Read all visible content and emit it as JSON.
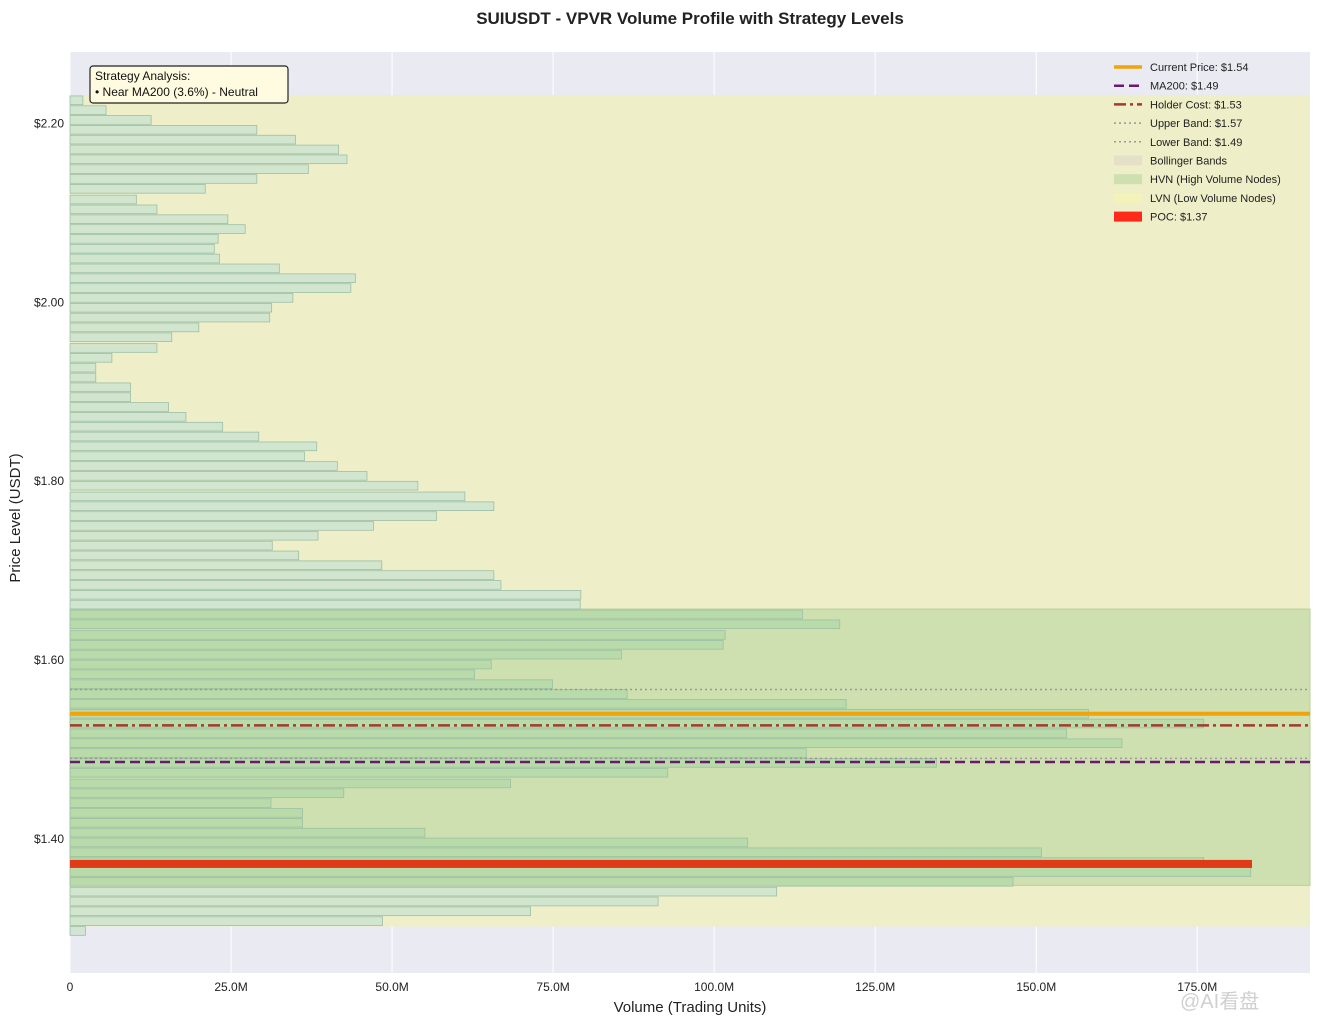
{
  "chart_data": {
    "type": "bar",
    "orientation": "horizontal",
    "title": "SUIUSDT - VPVR Volume Profile with Strategy Levels",
    "xlabel": "Volume (Trading Units)",
    "ylabel": "Price Level (USDT)",
    "xlim": [
      0,
      192500000
    ],
    "ylim": [
      1.25,
      2.28
    ],
    "x_ticks": [
      0,
      25000000,
      50000000,
      75000000,
      100000000,
      125000000,
      150000000,
      175000000
    ],
    "x_tick_labels": [
      "0",
      "25.0M",
      "50.0M",
      "75.0M",
      "100.0M",
      "125.0M",
      "150.0M",
      "175.0M"
    ],
    "y_ticks": [
      1.4,
      1.6,
      1.8,
      2.0,
      2.2
    ],
    "y_tick_labels": [
      "$1.40",
      "$1.60",
      "$1.80",
      "$2.00",
      "$2.20"
    ],
    "grid": true,
    "legend_position": "top-right",
    "bin_height": 0.0111,
    "bins": {
      "price": [
        2.226,
        2.215,
        2.204,
        2.193,
        2.182,
        2.171,
        2.16,
        2.149,
        2.138,
        2.127,
        2.115,
        2.104,
        2.093,
        2.082,
        2.071,
        2.06,
        2.049,
        2.038,
        2.027,
        2.016,
        2.005,
        1.994,
        1.983,
        1.972,
        1.961,
        1.949,
        1.938,
        1.927,
        1.916,
        1.905,
        1.894,
        1.883,
        1.872,
        1.861,
        1.85,
        1.839,
        1.828,
        1.817,
        1.806,
        1.795,
        1.783,
        1.772,
        1.761,
        1.75,
        1.739,
        1.728,
        1.717,
        1.706,
        1.695,
        1.684,
        1.673,
        1.662,
        1.651,
        1.64,
        1.628,
        1.617,
        1.606,
        1.595,
        1.584,
        1.573,
        1.562,
        1.551,
        1.54,
        1.529,
        1.518,
        1.507,
        1.496,
        1.485,
        1.474,
        1.462,
        1.451,
        1.44,
        1.429,
        1.418,
        1.407,
        1.396,
        1.385,
        1.374,
        1.363,
        1.352,
        1.341,
        1.33,
        1.319,
        1.308
      ],
      "volume": [
        2000000,
        5600000,
        12600000,
        29000000,
        35000000,
        41700000,
        43000000,
        37000000,
        29000000,
        21000000,
        10300000,
        13500000,
        24500000,
        27200000,
        23000000,
        22400000,
        23200000,
        32500000,
        44300000,
        43600000,
        34600000,
        31300000,
        31000000,
        20000000,
        15800000,
        13500000,
        6500000,
        4000000,
        4000000,
        9400000,
        9400000,
        15300000,
        18000000,
        23700000,
        29300000,
        38300000,
        36400000,
        41500000,
        46100000,
        54000000,
        61300000,
        65800000,
        56900000,
        47100000,
        38500000,
        31400000,
        35500000,
        48400000,
        65800000,
        66900000,
        79300000,
        79200000,
        113700000,
        119500000,
        101700000,
        101400000,
        85600000,
        65400000,
        62800000,
        74900000,
        86500000,
        120500000,
        158100000,
        176000000,
        154700000,
        163300000,
        114300000,
        134500000,
        92800000,
        68400000,
        42500000,
        31200000,
        36100000,
        36100000,
        55100000,
        105200000,
        150800000,
        176000000,
        183300000,
        146400000,
        109700000,
        91300000,
        71500000,
        48500000
      ],
      "note_last": "1.297 bin volume 2400000"
    },
    "extra_bin": {
      "price": 1.297,
      "volume": 2400000
    },
    "hvn_range": [
      1.348,
      1.657
    ],
    "lvn_range": [
      1.302,
      2.232
    ],
    "bollinger_bands": {
      "upper": 1.567,
      "lower": 1.49
    },
    "levels": [
      {
        "name": "Current Price: $1.54",
        "value": 1.54,
        "color": "#f0a30a",
        "style": "solid"
      },
      {
        "name": "MA200: $1.49",
        "value": 1.486,
        "color": "#6a1a6e",
        "style": "dashed"
      },
      {
        "name": "Holder Cost: $1.53",
        "value": 1.527,
        "color": "#a23b2a",
        "style": "dashdot"
      },
      {
        "name": "Upper Band: $1.57",
        "value": 1.567,
        "color": "#999999",
        "style": "dotted"
      },
      {
        "name": "Lower Band: $1.49",
        "value": 1.49,
        "color": "#999999",
        "style": "dotted"
      }
    ],
    "poc": {
      "label": "POC: $1.37",
      "price": 1.372,
      "volume": 183500000,
      "color": "#e03a16"
    },
    "legend": [
      {
        "label": "Current Price: $1.54",
        "kind": "line",
        "color": "#f0a30a",
        "style": "solid"
      },
      {
        "label": "MA200: $1.49",
        "kind": "line",
        "color": "#6a1a6e",
        "style": "dashed"
      },
      {
        "label": "Holder Cost: $1.53",
        "kind": "line",
        "color": "#a23b2a",
        "style": "dashdot"
      },
      {
        "label": "Upper Band: $1.57",
        "kind": "line",
        "color": "#999999",
        "style": "dotted"
      },
      {
        "label": "Lower Band: $1.49",
        "kind": "line",
        "color": "#999999",
        "style": "dotted"
      },
      {
        "label": "Bollinger Bands",
        "kind": "patch",
        "color": "#e4e1c8"
      },
      {
        "label": "HVN (High Volume Nodes)",
        "kind": "patch",
        "color": "#cfe0b0"
      },
      {
        "label": "LVN (Low Volume Nodes)",
        "kind": "patch",
        "color": "#f3f2b8"
      },
      {
        "label": "POC: $1.37",
        "kind": "patch",
        "color": "#ff2a1a"
      }
    ],
    "annotation": {
      "lines": [
        "Strategy Analysis:",
        "• Near MA200 (3.6%) - Neutral"
      ]
    }
  },
  "watermark": "@AI看盘",
  "colors": {
    "plot_bg": "#eaeaf2",
    "lvn_fill": "#eeeec8",
    "hvn_fill": "#cfe0b0",
    "bar_lvn": "#cde3d0",
    "bar_hvn": "#b5d8a8",
    "bar_stroke": "#9cbfa5"
  }
}
